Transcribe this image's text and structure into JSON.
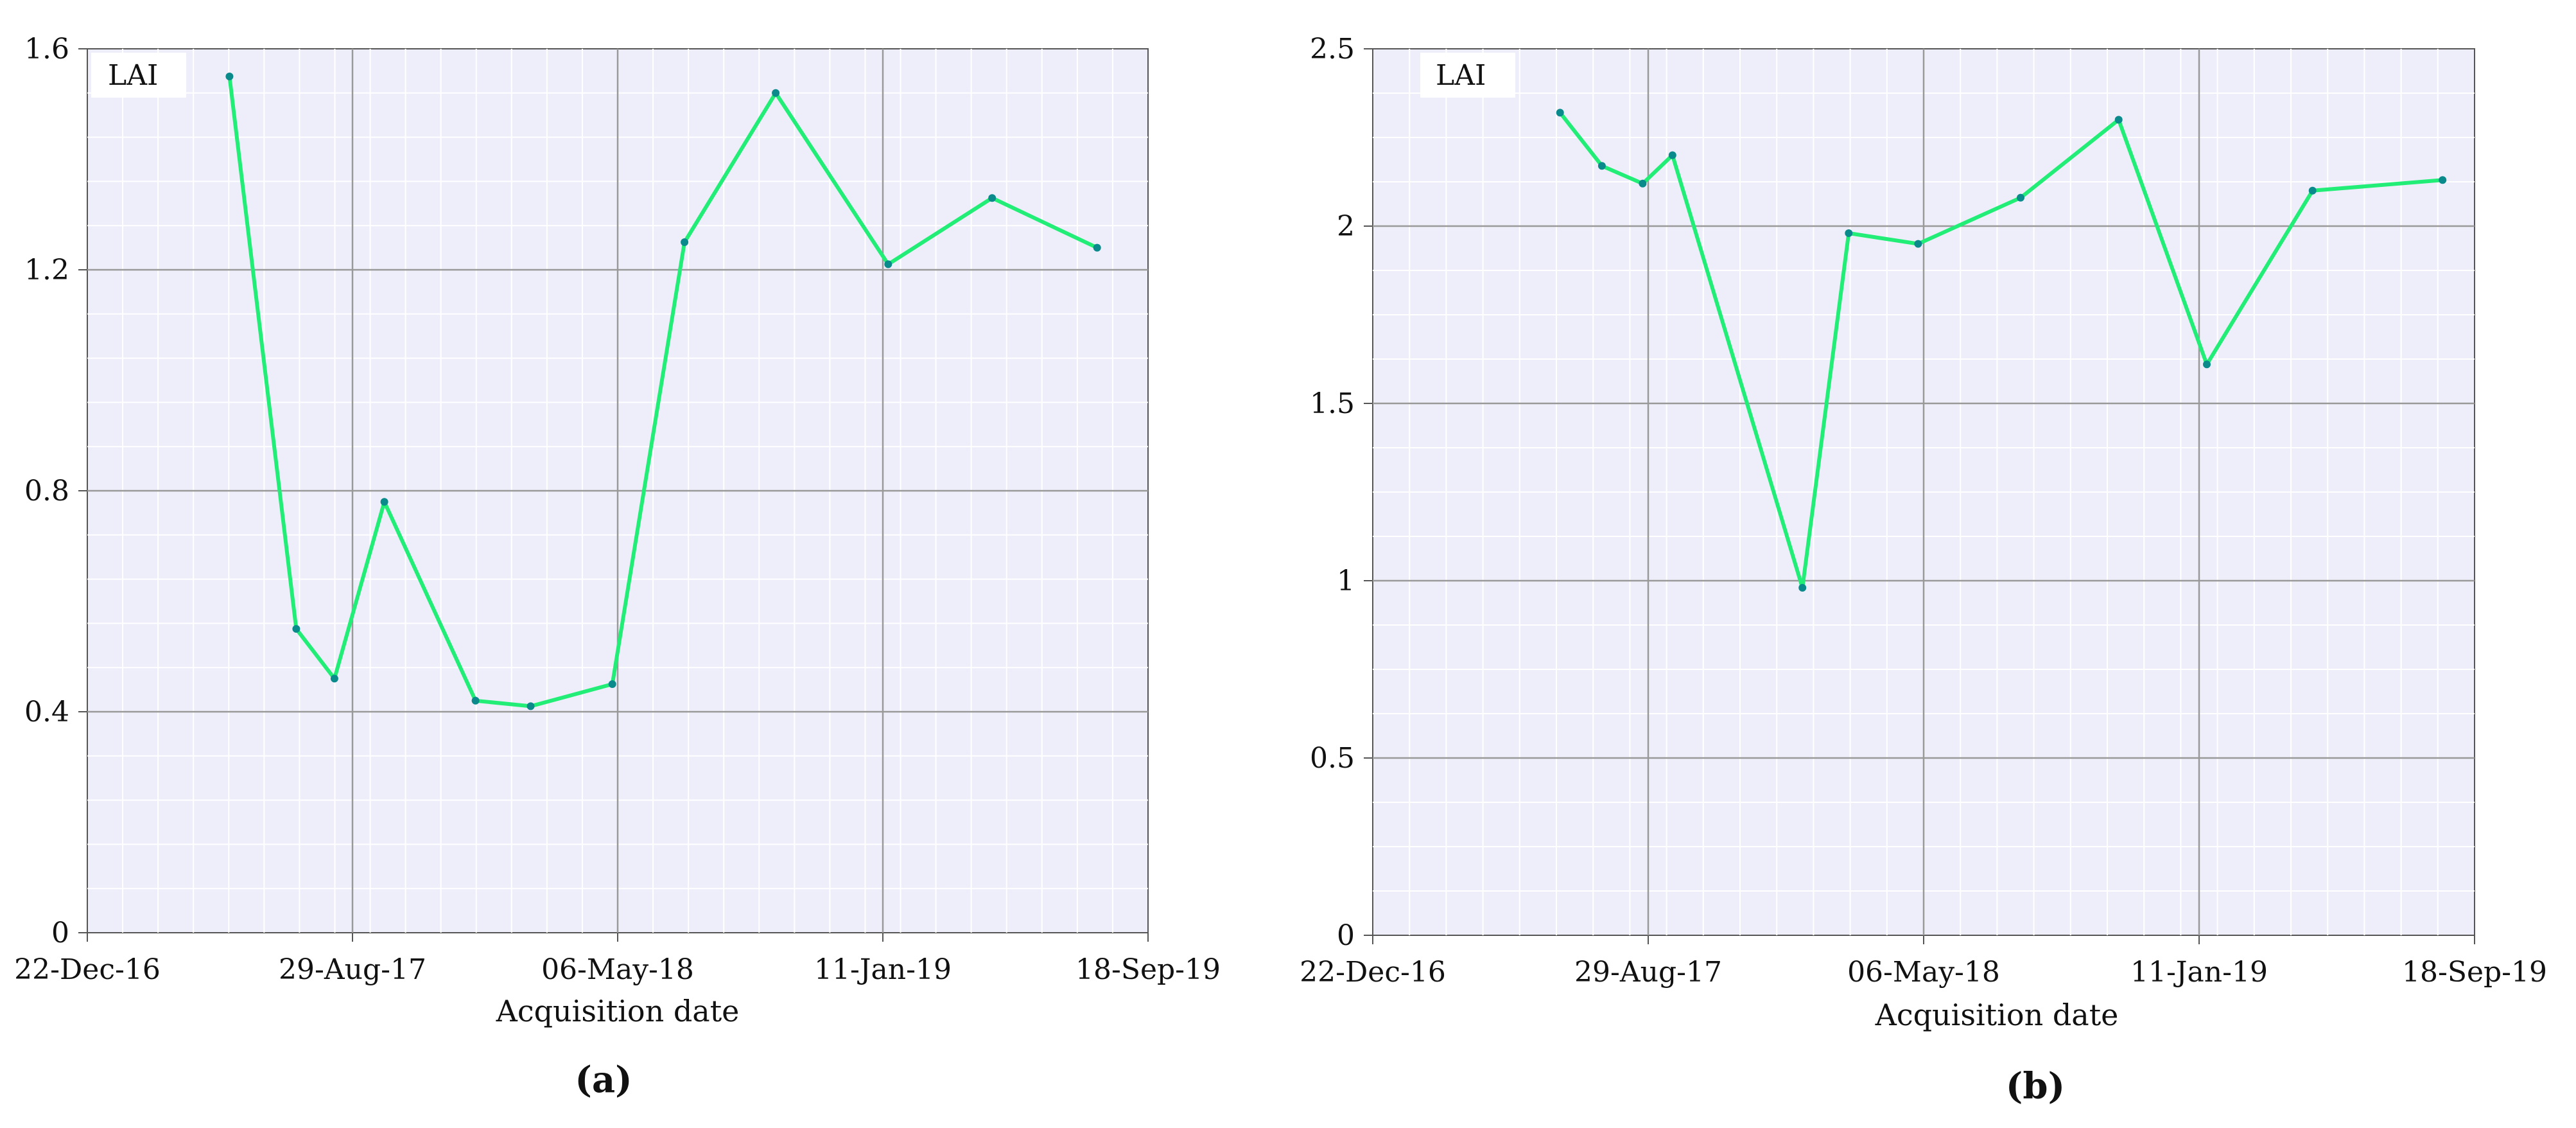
{
  "chart_data": [
    {
      "type": "line",
      "panel_label": "(a)",
      "legend": "LAI",
      "xlabel": "Acquisition date",
      "x_ticks": [
        "22-Dec-16",
        "29-Aug-17",
        "06-May-18",
        "11-Jan-19",
        "18-Sep-19"
      ],
      "xlim": [
        "2016-12-22",
        "2019-09-18"
      ],
      "ylim": [
        0,
        1.6
      ],
      "y_ticks": [
        "0",
        "0.4",
        "0.8",
        "1.2",
        "1.6"
      ],
      "grid": true,
      "series": [
        {
          "color": "#22ee77",
          "x": [
            "2017-05-05",
            "2017-07-07",
            "2017-08-12",
            "2017-09-28",
            "2017-12-23",
            "2018-02-13",
            "2018-05-01",
            "2018-07-08",
            "2018-10-02",
            "2019-01-16",
            "2019-04-24",
            "2019-08-01"
          ],
          "y": [
            1.55,
            0.55,
            0.46,
            0.78,
            0.42,
            0.41,
            0.45,
            1.25,
            1.52,
            1.21,
            1.33,
            1.24
          ]
        }
      ]
    },
    {
      "type": "line",
      "panel_label": "(b)",
      "legend": "LAI",
      "xlabel": "Acquisition date",
      "x_ticks": [
        "22-Dec-16",
        "29-Aug-17",
        "06-May-18",
        "11-Jan-19",
        "18-Sep-19"
      ],
      "xlim": [
        "2016-12-22",
        "2019-09-18"
      ],
      "ylim": [
        0,
        2.5
      ],
      "y_ticks": [
        "0",
        "0.5",
        "1",
        "1.5",
        "2",
        "2.5"
      ],
      "grid": true,
      "series": [
        {
          "color": "#22ee77",
          "x": [
            "2017-06-10",
            "2017-07-18",
            "2017-08-24",
            "2017-09-20",
            "2018-01-16",
            "2018-02-27",
            "2018-05-01",
            "2018-08-02",
            "2018-10-30",
            "2019-01-18",
            "2019-04-24",
            "2019-08-20"
          ],
          "y": [
            2.32,
            2.17,
            2.12,
            2.2,
            0.98,
            1.98,
            1.95,
            2.08,
            2.3,
            1.61,
            2.1,
            2.13
          ]
        }
      ]
    }
  ]
}
